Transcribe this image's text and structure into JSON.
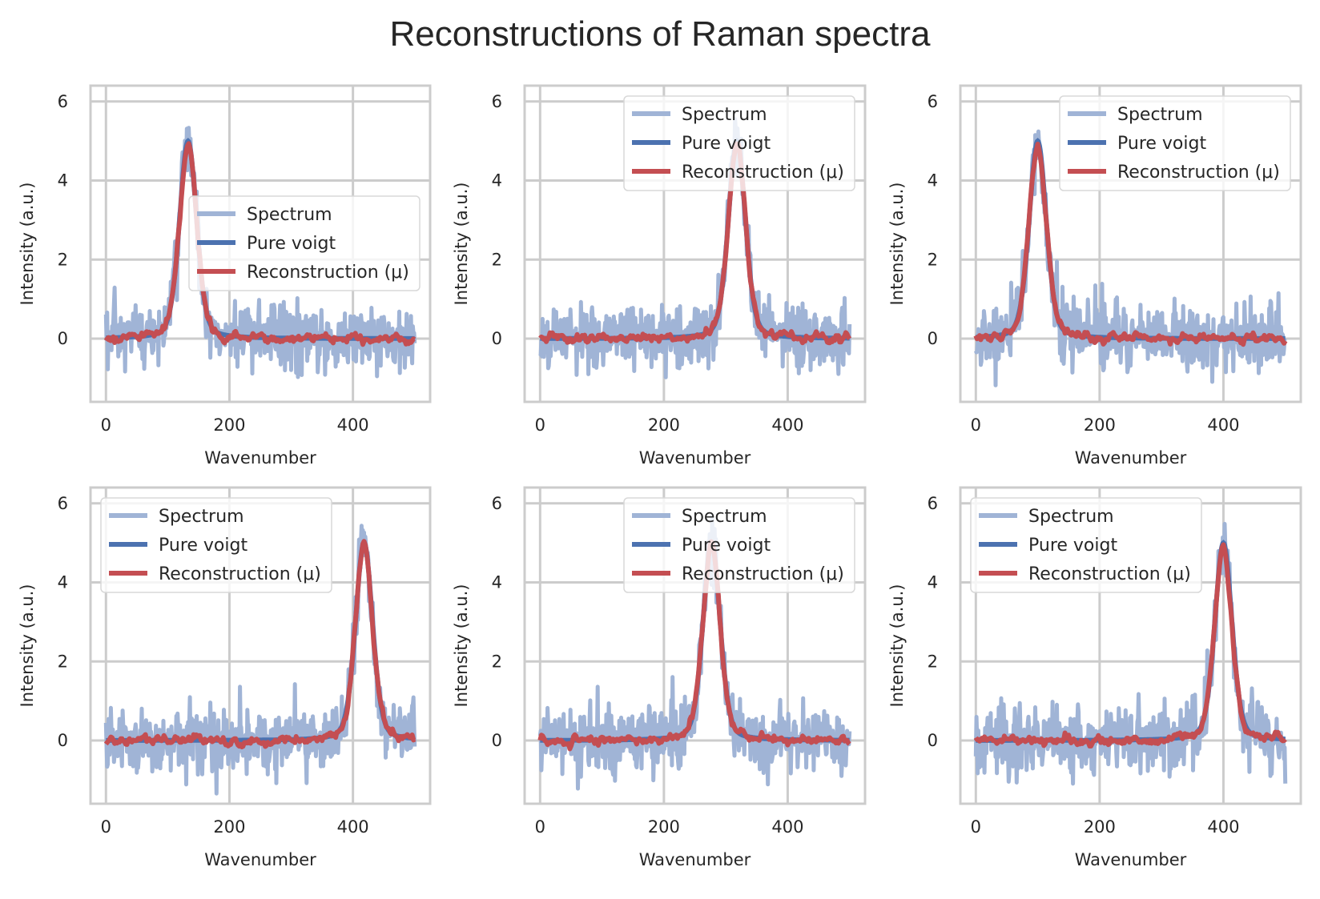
{
  "figure": {
    "title": "Reconstructions of Raman spectra"
  },
  "colors": {
    "spectrum": "#a0b4d6",
    "pure_voigt": "#4c72b0",
    "reconstruction": "#c44e52",
    "grid": "#cccccc",
    "frame": "#cccccc"
  },
  "chart_data": [
    {
      "type": "line",
      "panel": "top-left",
      "xlabel": "Wavenumber",
      "ylabel": "Intensity (a.u.)",
      "xlim": [
        -25,
        525
      ],
      "ylim": [
        -1.6,
        6.4
      ],
      "xticks": [
        "0",
        "200",
        "400"
      ],
      "yticks": [
        "0",
        "2",
        "4",
        "6"
      ],
      "grid": true,
      "legend_position": "center-right",
      "peak_center": 133,
      "peak_height": 5.0,
      "noise_amplitude": 0.55,
      "legend": [
        "Spectrum",
        "Pure voigt",
        "Reconstruction (μ)"
      ],
      "series": [
        {
          "name": "Spectrum"
        },
        {
          "name": "Pure voigt"
        },
        {
          "name": "Reconstruction (μ)"
        }
      ]
    },
    {
      "type": "line",
      "panel": "top-middle",
      "xlabel": "Wavenumber",
      "ylabel": "Intensity (a.u.)",
      "xlim": [
        -25,
        525
      ],
      "ylim": [
        -1.6,
        6.4
      ],
      "xticks": [
        "0",
        "200",
        "400"
      ],
      "yticks": [
        "0",
        "2",
        "4",
        "6"
      ],
      "grid": true,
      "legend_position": "upper-right",
      "peak_center": 318,
      "peak_height": 5.0,
      "noise_amplitude": 0.55,
      "legend": [
        "Spectrum",
        "Pure voigt",
        "Reconstruction (μ)"
      ],
      "series": [
        {
          "name": "Spectrum"
        },
        {
          "name": "Pure voigt"
        },
        {
          "name": "Reconstruction (μ)"
        }
      ]
    },
    {
      "type": "line",
      "panel": "top-right",
      "xlabel": "Wavenumber",
      "ylabel": "Intensity (a.u.)",
      "xlim": [
        -25,
        525
      ],
      "ylim": [
        -1.6,
        6.4
      ],
      "xticks": [
        "0",
        "200",
        "400"
      ],
      "yticks": [
        "0",
        "2",
        "4",
        "6"
      ],
      "grid": true,
      "legend_position": "upper-right",
      "peak_center": 100,
      "peak_height": 5.0,
      "noise_amplitude": 0.55,
      "legend": [
        "Spectrum",
        "Pure voigt",
        "Reconstruction (μ)"
      ],
      "series": [
        {
          "name": "Spectrum"
        },
        {
          "name": "Pure voigt"
        },
        {
          "name": "Reconstruction (μ)"
        }
      ]
    },
    {
      "type": "line",
      "panel": "bottom-left",
      "xlabel": "Wavenumber",
      "ylabel": "Intensity (a.u.)",
      "xlim": [
        -25,
        525
      ],
      "ylim": [
        -1.6,
        6.4
      ],
      "xticks": [
        "0",
        "200",
        "400"
      ],
      "yticks": [
        "0",
        "2",
        "4",
        "6"
      ],
      "grid": true,
      "legend_position": "upper-left",
      "peak_center": 418,
      "peak_height": 5.0,
      "noise_amplitude": 0.55,
      "legend": [
        "Spectrum",
        "Pure voigt",
        "Reconstruction (μ)"
      ],
      "series": [
        {
          "name": "Spectrum"
        },
        {
          "name": "Pure voigt"
        },
        {
          "name": "Reconstruction (μ)"
        }
      ]
    },
    {
      "type": "line",
      "panel": "bottom-middle",
      "xlabel": "Wavenumber",
      "ylabel": "Intensity (a.u.)",
      "xlim": [
        -25,
        525
      ],
      "ylim": [
        -1.6,
        6.4
      ],
      "xticks": [
        "0",
        "200",
        "400"
      ],
      "yticks": [
        "0",
        "2",
        "4",
        "6"
      ],
      "grid": true,
      "legend_position": "upper-right",
      "peak_center": 277,
      "peak_height": 5.0,
      "noise_amplitude": 0.55,
      "legend": [
        "Spectrum",
        "Pure voigt",
        "Reconstruction (μ)"
      ],
      "series": [
        {
          "name": "Spectrum"
        },
        {
          "name": "Pure voigt"
        },
        {
          "name": "Reconstruction (μ)"
        }
      ]
    },
    {
      "type": "line",
      "panel": "bottom-right",
      "xlabel": "Wavenumber",
      "ylabel": "Intensity (a.u.)",
      "xlim": [
        -25,
        525
      ],
      "ylim": [
        -1.6,
        6.4
      ],
      "xticks": [
        "0",
        "200",
        "400"
      ],
      "yticks": [
        "0",
        "2",
        "4",
        "6"
      ],
      "grid": true,
      "legend_position": "upper-left",
      "peak_center": 400,
      "peak_height": 5.0,
      "noise_amplitude": 0.55,
      "legend": [
        "Spectrum",
        "Pure voigt",
        "Reconstruction (μ)"
      ],
      "series": [
        {
          "name": "Spectrum"
        },
        {
          "name": "Pure voigt"
        },
        {
          "name": "Reconstruction (μ)"
        }
      ]
    }
  ]
}
